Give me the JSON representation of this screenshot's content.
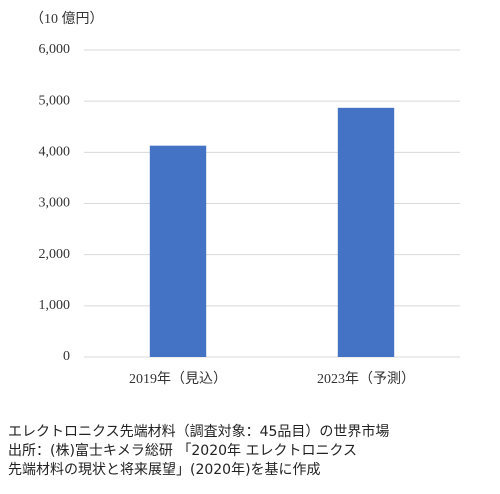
{
  "chart_data": {
    "type": "bar",
    "ylabel": "（10 億円）",
    "categories": [
      "2019年（見込）",
      "2023年（予測）"
    ],
    "values": [
      4130,
      4870
    ],
    "color": "#4472c4",
    "ylim": [
      0,
      6000
    ],
    "yticks": [
      0,
      {
        "value": 1000,
        "label": "1,000"
      },
      {
        "value": 2000,
        "label": "2,000"
      },
      {
        "value": 3000,
        "label": "3,000"
      },
      {
        "value": 4000,
        "label": "4,000"
      },
      {
        "value": 5000,
        "label": "5,000"
      },
      {
        "value": 6000,
        "label": "6,000"
      }
    ],
    "grid": true,
    "caption": [
      "エレクトロニクス先端材料（調査対象：45品目）の世界市場",
      "出所：(株)富士キメラ総研 「2020年 エレクトロニクス",
      "先端材料の現状と将来展望」(2020年)を基に作成"
    ]
  }
}
